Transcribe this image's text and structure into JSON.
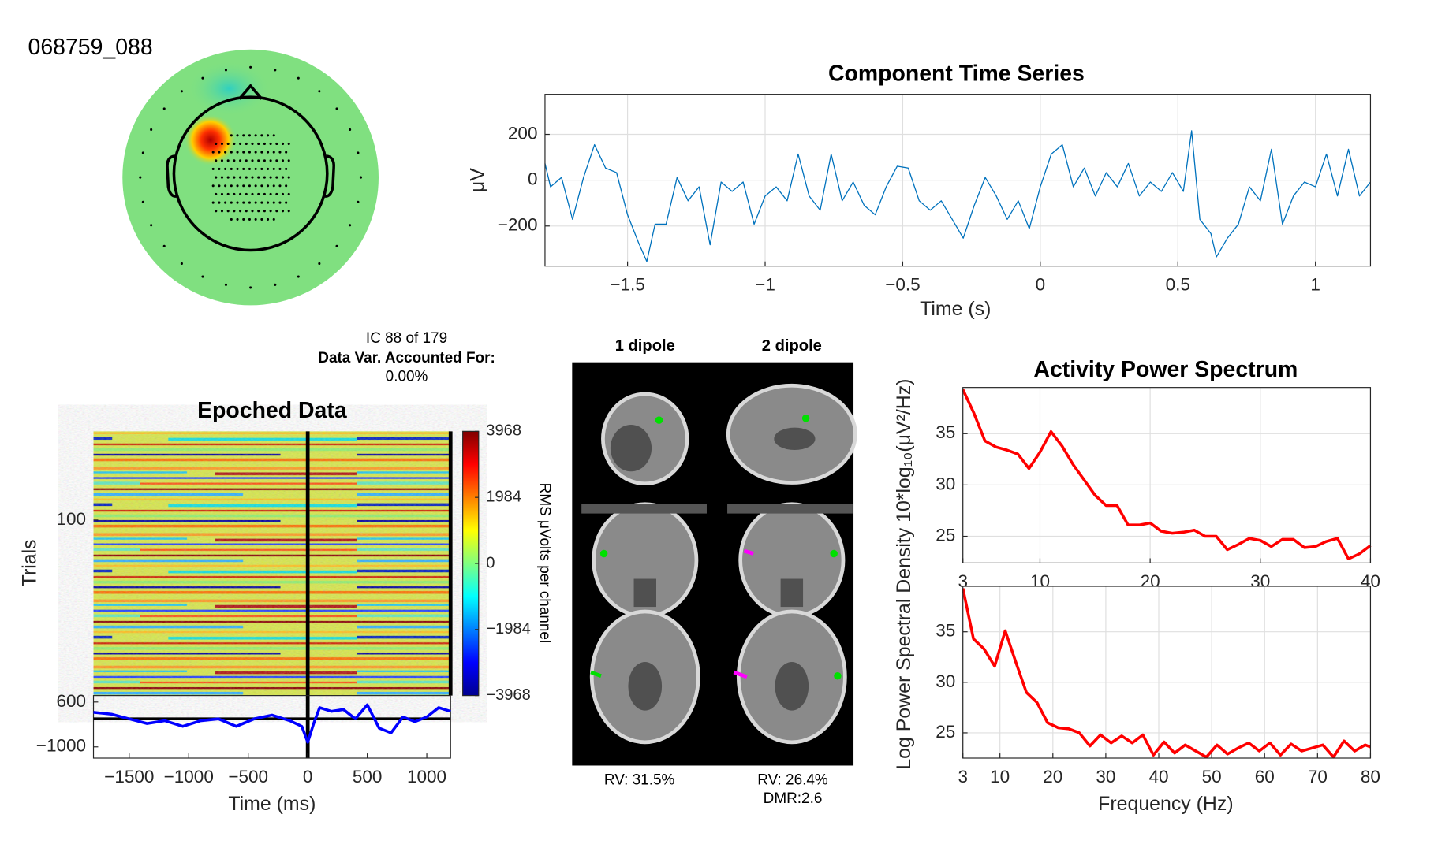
{
  "header": {
    "id": "068759_088",
    "ic": "IC 88 of 179",
    "var_label": "Data Var. Accounted For:",
    "var_value": "0.00%"
  },
  "dipoles": {
    "col1": "1 dipole",
    "col2": "2 dipole",
    "rv1": "RV: 31.5%",
    "rv2": "RV: 26.4%",
    "dmr": "DMR:2.6"
  },
  "chart_data": [
    {
      "type": "line",
      "title": "Component Time Series",
      "xlabel": "Time (s)",
      "ylabel": "μV",
      "color": "#0072bd",
      "grid": true,
      "xlim": [
        -1.8,
        1.2
      ],
      "ylim": [
        -375,
        375
      ],
      "xticks": [
        {
          "value": -1.5,
          "label": "−1.5"
        },
        {
          "value": -1,
          "label": "−1"
        },
        {
          "value": -0.5,
          "label": "−0.5"
        },
        0,
        0.5,
        1
      ],
      "yticks": [
        {
          "value": -200,
          "label": "−200"
        },
        0,
        200
      ],
      "x": [
        -1.8,
        -1.78,
        -1.74,
        -1.7,
        -1.66,
        -1.62,
        -1.58,
        -1.54,
        -1.5,
        -1.46,
        -1.43,
        -1.4,
        -1.36,
        -1.32,
        -1.28,
        -1.24,
        -1.2,
        -1.16,
        -1.12,
        -1.08,
        -1.04,
        -1,
        -0.96,
        -0.92,
        -0.88,
        -0.84,
        -0.8,
        -0.76,
        -0.72,
        -0.68,
        -0.64,
        -0.6,
        -0.56,
        -0.52,
        -0.48,
        -0.44,
        -0.4,
        -0.36,
        -0.32,
        -0.28,
        -0.24,
        -0.2,
        -0.16,
        -0.12,
        -0.08,
        -0.04,
        0,
        0.04,
        0.08,
        0.12,
        0.16,
        0.2,
        0.24,
        0.28,
        0.32,
        0.36,
        0.4,
        0.44,
        0.48,
        0.52,
        0.55,
        0.58,
        0.62,
        0.64,
        0.68,
        0.72,
        0.76,
        0.8,
        0.84,
        0.88,
        0.92,
        0.96,
        1,
        1.04,
        1.08,
        1.12,
        1.16,
        1.2
      ],
      "values": [
        73,
        -29,
        12,
        -171,
        12,
        155,
        53,
        33,
        -151,
        -273,
        -355,
        -192,
        -192,
        12,
        -90,
        -29,
        -282,
        -8,
        -49,
        -8,
        -192,
        -69,
        -29,
        -90,
        114,
        -69,
        -131,
        114,
        -90,
        -8,
        -110,
        -151,
        -29,
        61,
        53,
        -90,
        -131,
        -90,
        -171,
        -253,
        -110,
        12,
        -69,
        -171,
        -90,
        -212,
        -29,
        114,
        155,
        -29,
        53,
        -69,
        33,
        -29,
        73,
        -69,
        -8,
        -49,
        33,
        -49,
        216,
        -171,
        -233,
        -335,
        -253,
        -192,
        -29,
        -90,
        135,
        -192,
        -69,
        -8,
        -29,
        114,
        -69,
        135,
        -69,
        -8
      ]
    },
    {
      "type": "erpimage",
      "title": "Epoched Data",
      "ylabel": "Trials",
      "xlabel": "Time (ms)",
      "ylim": [
        1,
        296
      ],
      "y_reversed": true,
      "yticks": [
        100
      ],
      "xlim": [
        -1800,
        1200
      ],
      "xticks": [
        {
          "value": -1500,
          "label": "−1500"
        },
        {
          "value": -1000,
          "label": "−1000"
        },
        {
          "value": -500,
          "label": "−500"
        },
        0,
        500,
        1000
      ],
      "colorbar": {
        "label": "RMS μVolts per channel",
        "clim": [
          -3968,
          3968
        ],
        "ticks": [
          3968,
          1984,
          0,
          {
            "value": -1984,
            "label": "−1984"
          },
          {
            "value": -3968,
            "label": "−3968"
          }
        ]
      },
      "erp": {
        "color": "#0000ff",
        "ylim": [
          -1400,
          830
        ],
        "yticks": [
          {
            "value": -1000,
            "label": "−1000"
          },
          600
        ],
        "x": [
          -1800,
          -1650,
          -1500,
          -1350,
          -1200,
          -1050,
          -900,
          -750,
          -600,
          -450,
          -300,
          -150,
          -50,
          0,
          50,
          100,
          200,
          300,
          400,
          500,
          600,
          700,
          800,
          900,
          1000,
          1100,
          1200
        ],
        "values": [
          233,
          167,
          0,
          -167,
          -67,
          -267,
          -67,
          0,
          -267,
          0,
          133,
          -67,
          -267,
          -833,
          -167,
          400,
          267,
          333,
          0,
          500,
          -333,
          -500,
          67,
          -100,
          67,
          400,
          267
        ]
      }
    },
    {
      "type": "line",
      "title": "Activity Power Spectrum",
      "ylabel": "Log Power Spectral Density 10*log₁₀(μV²/Hz)",
      "color": "#ff0000",
      "grid": true,
      "xlim": [
        3,
        40
      ],
      "ylim": [
        22.4,
        39.5
      ],
      "xticks": [
        3,
        10,
        20,
        30,
        40
      ],
      "yticks": [
        25,
        30,
        35
      ],
      "x": [
        3,
        4,
        5,
        6,
        7,
        8,
        9,
        10,
        11,
        12,
        13,
        14,
        15,
        16,
        17,
        18,
        19,
        20,
        21,
        22,
        23,
        24,
        25,
        26,
        27,
        28,
        29,
        30,
        31,
        32,
        33,
        34,
        35,
        36,
        37,
        38,
        39,
        40
      ],
      "values": [
        39.3,
        37,
        34.3,
        33.7,
        33.4,
        33,
        31.6,
        33.2,
        35.2,
        33.8,
        32,
        30.5,
        29,
        28,
        28,
        26.1,
        26.1,
        26.3,
        25.5,
        25.3,
        25.4,
        25.6,
        25,
        25,
        23.7,
        24.2,
        24.8,
        24.6,
        24,
        24.7,
        24.7,
        23.9,
        24,
        24.5,
        24.8,
        22.8,
        23.3,
        24.1
      ]
    },
    {
      "type": "line",
      "xlabel": "Frequency (Hz)",
      "color": "#ff0000",
      "grid": true,
      "xlim": [
        3,
        80
      ],
      "ylim": [
        22.5,
        39.5
      ],
      "xticks": [
        3,
        10,
        20,
        30,
        40,
        50,
        60,
        70,
        80
      ],
      "yticks": [
        25,
        30,
        35
      ],
      "x": [
        3,
        5,
        7,
        9,
        11,
        13,
        15,
        17,
        19,
        21,
        23,
        25,
        27,
        29,
        31,
        33,
        35,
        37,
        39,
        41,
        43,
        45,
        47,
        49,
        51,
        53,
        55,
        57,
        59,
        61,
        63,
        65,
        67,
        69,
        71,
        73,
        75,
        77,
        79,
        80
      ],
      "values": [
        39.3,
        34.3,
        33.3,
        31.6,
        35.1,
        32,
        29,
        28,
        26,
        25.5,
        25.4,
        25,
        23.7,
        24.8,
        24,
        24.7,
        24,
        24.8,
        22.8,
        24.1,
        23,
        23.8,
        23.2,
        22.6,
        23.8,
        22.9,
        23.5,
        24,
        23.2,
        24,
        22.8,
        23.9,
        23.2,
        23.5,
        23.8,
        22.6,
        24.2,
        23.2,
        23.8,
        23.6
      ]
    }
  ]
}
